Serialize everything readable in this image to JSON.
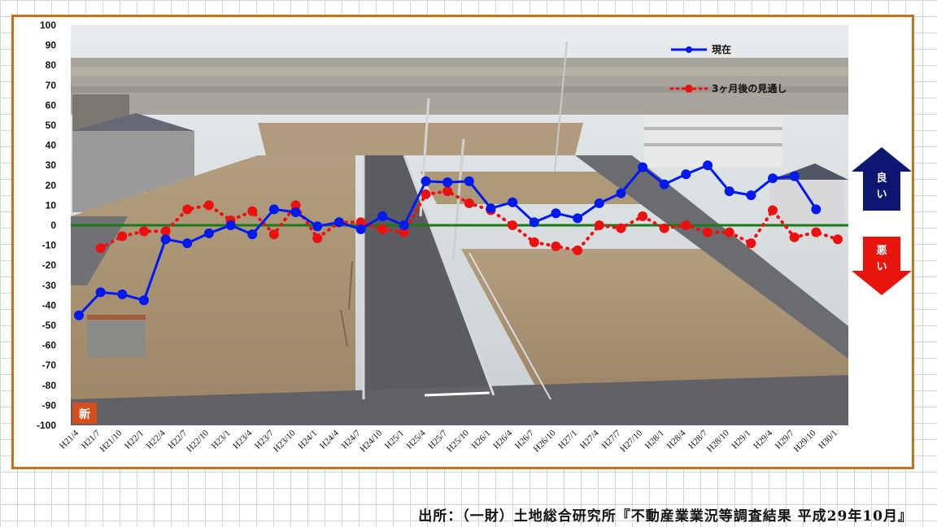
{
  "source_note": "出所：（一財）土地総合研究所『不動産業業況等調査結果 平成29年10月』",
  "photo_badge": "新",
  "indicators": {
    "good_label": "良い",
    "bad_label": "悪い",
    "good_color": "#0d1670",
    "bad_color": "#e8150c"
  },
  "colors": {
    "current": "#0019f0",
    "outlook": "#ee1010",
    "zero_line": "#1a7a1a",
    "frame": "#c8721e",
    "sky": "#dfe4e6",
    "ground": "#a89373",
    "road": "#55575c"
  },
  "chart_data": {
    "type": "line",
    "title": "",
    "xlabel": "",
    "ylabel": "",
    "ylim": [
      -100,
      100
    ],
    "ytick_step": 10,
    "grid": false,
    "legend_position": "top-right",
    "categories": [
      "H21/4",
      "H21/7",
      "H21/10",
      "H22/1",
      "H22/4",
      "H22/7",
      "H22/10",
      "H23/1",
      "H23/4",
      "H23/7",
      "H23/10",
      "H24/1",
      "H24/4",
      "H24/7",
      "H24/10",
      "H25/1",
      "H25/4",
      "H25/7",
      "H25/10",
      "H26/1",
      "H26/4",
      "H26/7",
      "H26/10",
      "H27/1",
      "H27/4",
      "H27/7",
      "H27/10",
      "H28/1",
      "H28/4",
      "H28/7",
      "H28/10",
      "H29/1",
      "H29/4",
      "H29/7",
      "H29/10",
      "H30/1"
    ],
    "series": [
      {
        "name": "現在",
        "style": "solid-line-markers",
        "values": [
          -45,
          -33.5,
          -34.5,
          -37.5,
          -7,
          -9,
          -4,
          0,
          -4.5,
          8,
          6.5,
          -0.5,
          1.5,
          -2,
          4.5,
          0,
          22,
          21.5,
          22,
          8.5,
          11.5,
          1.5,
          6,
          3.5,
          11,
          16,
          29,
          20.5,
          25.5,
          30,
          17,
          15,
          23.5,
          24.5,
          8,
          null
        ]
      },
      {
        "name": "3ヶ月後の見通し",
        "style": "dotted-line-markers",
        "values": [
          null,
          -11.5,
          -5.5,
          -3,
          -3,
          8,
          10,
          2.5,
          7,
          -4.5,
          10,
          -6.5,
          1.5,
          1.5,
          -2,
          -3.5,
          15.5,
          17,
          11,
          7.5,
          0,
          -8.5,
          -10.5,
          -12.5,
          0,
          -1.5,
          4.5,
          -1.5,
          0,
          -3.5,
          -3.5,
          -9,
          7.5,
          -6,
          -3.5,
          -7
        ]
      }
    ]
  }
}
